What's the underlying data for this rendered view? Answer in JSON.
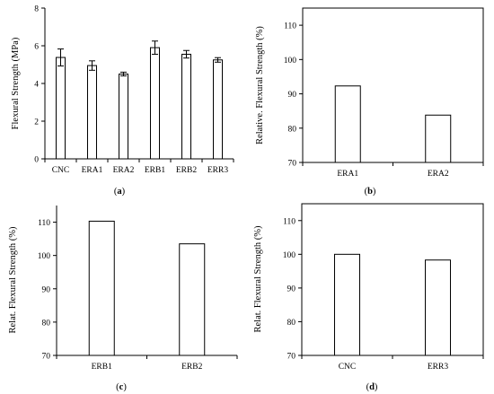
{
  "chart_data": [
    {
      "type": "bar",
      "panel_label": "(a)",
      "ylabel": "Flexural Strength (MPa)",
      "categories": [
        "CNC",
        "ERA1",
        "ERA2",
        "ERB1",
        "ERB2",
        "ERR3"
      ],
      "values": [
        5.38,
        4.95,
        4.5,
        5.9,
        5.55,
        5.25
      ],
      "error": [
        0.45,
        0.25,
        0.1,
        0.35,
        0.2,
        0.12
      ],
      "ylim": [
        0,
        8
      ],
      "yticks": [
        0,
        2,
        4,
        6,
        8
      ],
      "frame": "left-bottom",
      "grid": false
    },
    {
      "type": "bar",
      "panel_label": "(b)",
      "ylabel": "Relative. Flexural Strength (%)",
      "categories": [
        "ERA1",
        "ERA2"
      ],
      "values": [
        92.3,
        83.8
      ],
      "ylim": [
        70,
        115
      ],
      "yticks": [
        70,
        80,
        90,
        100,
        110
      ],
      "frame": "box",
      "grid": false
    },
    {
      "type": "bar",
      "panel_label": "(c)",
      "ylabel": "Relat. Flexural Strength (%)",
      "categories": [
        "ERB1",
        "ERB2"
      ],
      "values": [
        110.3,
        103.5
      ],
      "ylim": [
        70,
        115
      ],
      "yticks": [
        70,
        80,
        90,
        100,
        110
      ],
      "frame": "left-bottom",
      "grid": false
    },
    {
      "type": "bar",
      "panel_label": "(d)",
      "ylabel": "Relat. Flexural Strength (%)",
      "categories": [
        "CNC",
        "ERR3"
      ],
      "values": [
        100.0,
        98.3
      ],
      "ylim": [
        70,
        115
      ],
      "yticks": [
        70,
        80,
        90,
        100,
        110
      ],
      "frame": "box",
      "grid": false
    }
  ]
}
